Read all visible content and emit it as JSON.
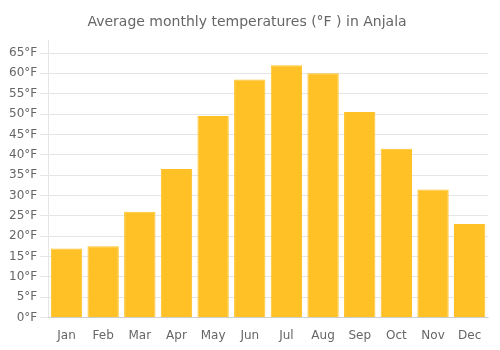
{
  "chart_data": {
    "type": "bar",
    "title": "Average monthly temperatures (°F ) in Anjala",
    "categories": [
      "Jan",
      "Feb",
      "Mar",
      "Apr",
      "May",
      "Jun",
      "Jul",
      "Aug",
      "Sep",
      "Oct",
      "Nov",
      "Dec"
    ],
    "values": [
      17,
      17.5,
      26,
      36.5,
      49.5,
      58.5,
      62,
      60,
      50.5,
      41.5,
      31.5,
      23
    ],
    "color": "#FFC125",
    "ylim": [
      0,
      68
    ],
    "yticks": [
      {
        "value": 0,
        "label": "0°F"
      },
      {
        "value": 5,
        "label": "5°F"
      },
      {
        "value": 10,
        "label": "10°F"
      },
      {
        "value": 15,
        "label": "15°F"
      },
      {
        "value": 20,
        "label": "20°F"
      },
      {
        "value": 25,
        "label": "25°F"
      },
      {
        "value": 30,
        "label": "30°F"
      },
      {
        "value": 35,
        "label": "35°F"
      },
      {
        "value": 40,
        "label": "40°F"
      },
      {
        "value": 45,
        "label": "45°F"
      },
      {
        "value": 50,
        "label": "50°F"
      },
      {
        "value": 55,
        "label": "55°F"
      },
      {
        "value": 60,
        "label": "60°F"
      },
      {
        "value": 65,
        "label": "65°F"
      }
    ],
    "grid": true
  }
}
